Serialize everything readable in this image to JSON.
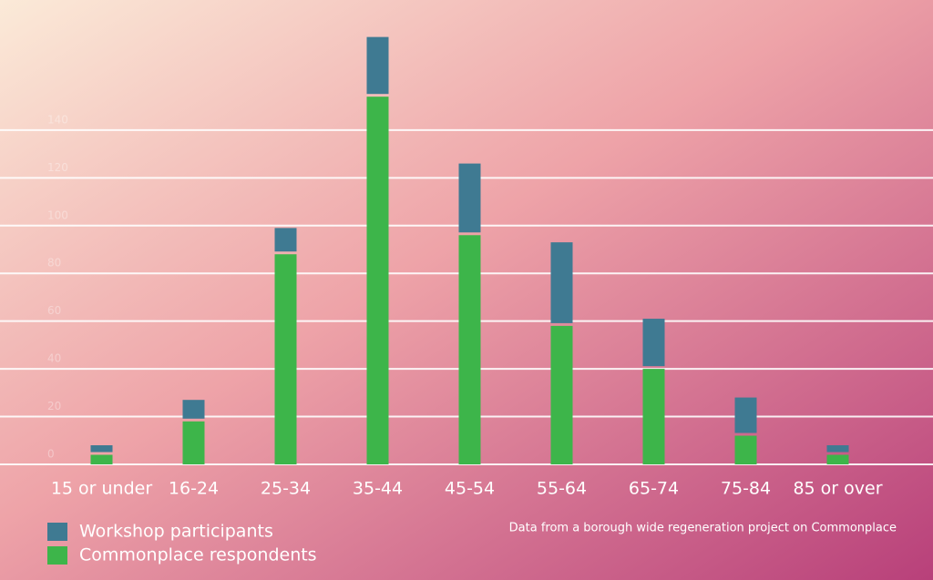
{
  "chart_data": {
    "type": "bar",
    "stacked": true,
    "categories": [
      "15 or under",
      "16-24",
      "25-34",
      "35-44",
      "45-54",
      "55-64",
      "65-74",
      "75-84",
      "85 or over"
    ],
    "series": [
      {
        "name": "Workshop participants",
        "color": "#3f7a92",
        "values": [
          4,
          9,
          11,
          25,
          30,
          35,
          21,
          16,
          4
        ]
      },
      {
        "name": "Commonplace respondents",
        "color": "#3db54a",
        "values": [
          4,
          18,
          88,
          154,
          96,
          58,
          40,
          12,
          4
        ]
      }
    ],
    "ylim": [
      0,
      180
    ],
    "yticks": [
      0,
      20,
      40,
      60,
      80,
      100,
      120,
      140
    ],
    "grid": true,
    "note": "Data from a borough wide regeneration project on Commonplace"
  }
}
